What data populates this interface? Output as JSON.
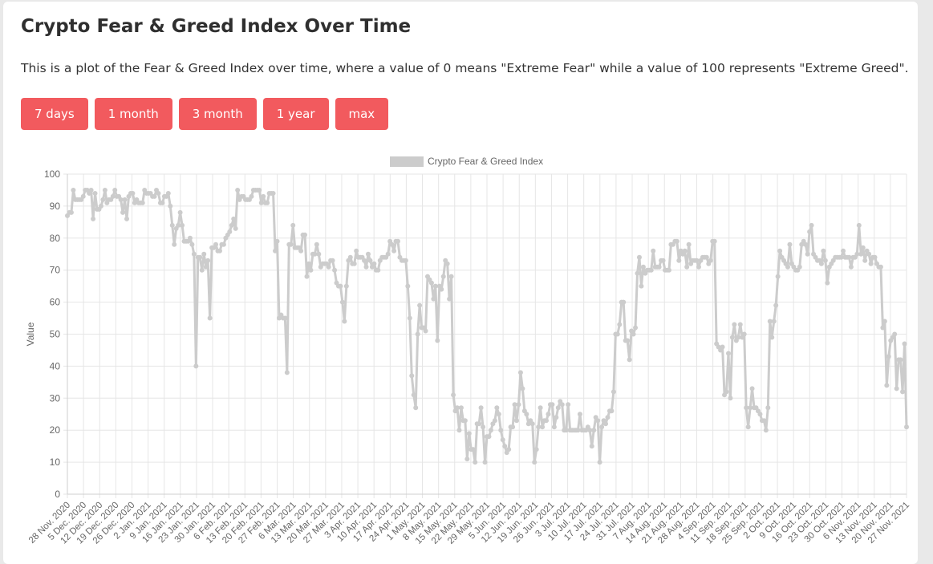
{
  "page": {
    "title": "Crypto Fear & Greed Index Over Time",
    "description": "This is a plot of the Fear & Greed Index over time, where a value of 0 means \"Extreme Fear\" while a value of 100 represents \"Extreme Greed\".",
    "buttons": [
      "7 days",
      "1 month",
      "3 month",
      "1 year",
      "max"
    ]
  },
  "colors": {
    "button_bg": "#f25a5e",
    "line": "#cccccc",
    "grid": "#e6e6e6"
  },
  "chart_data": {
    "type": "line",
    "title": "",
    "ylabel": "Value",
    "xlabel": "",
    "ylim": [
      0,
      100
    ],
    "yticks": [
      0,
      10,
      20,
      30,
      40,
      50,
      60,
      70,
      80,
      90,
      100
    ],
    "grid": true,
    "legend_position": "top-center",
    "series": [
      {
        "name": "Crypto Fear & Greed Index",
        "values": [
          87,
          88,
          88,
          95,
          92,
          92,
          92,
          92,
          93,
          95,
          95,
          94,
          95,
          86,
          94,
          89,
          89,
          90,
          92,
          95,
          91,
          92,
          92,
          93,
          95,
          93,
          93,
          92,
          88,
          92,
          86,
          93,
          94,
          94,
          91,
          92,
          91,
          91,
          91,
          95,
          94,
          94,
          94,
          93,
          93,
          95,
          94,
          91,
          91,
          93,
          93,
          94,
          90,
          84,
          78,
          83,
          84,
          88,
          84,
          79,
          79,
          79,
          80,
          78,
          75,
          40,
          74,
          74,
          70,
          75,
          71,
          73,
          55,
          77,
          77,
          78,
          76,
          76,
          78,
          78,
          80,
          81,
          82,
          84,
          86,
          83,
          95,
          92,
          93,
          93,
          92,
          92,
          92,
          93,
          95,
          95,
          95,
          95,
          91,
          93,
          91,
          91,
          94,
          94,
          94,
          76,
          79,
          55,
          56,
          55,
          55,
          38,
          78,
          78,
          84,
          77,
          77,
          77,
          76,
          81,
          81,
          68,
          72,
          70,
          75,
          75,
          78,
          75,
          71,
          72,
          72,
          72,
          71,
          73,
          73,
          70,
          66,
          65,
          65,
          60,
          54,
          65,
          73,
          74,
          72,
          72,
          76,
          74,
          74,
          74,
          73,
          71,
          75,
          73,
          71,
          72,
          70,
          70,
          73,
          74,
          74,
          74,
          75,
          79,
          78,
          76,
          79,
          79,
          74,
          73,
          73,
          73,
          65,
          55,
          37,
          31,
          27,
          50,
          59,
          52,
          52,
          51,
          68,
          67,
          66,
          61,
          65,
          48,
          65,
          64,
          68,
          73,
          72,
          61,
          68,
          31,
          26,
          27,
          20,
          27,
          23,
          23,
          11,
          19,
          14,
          14,
          10,
          22,
          22,
          27,
          21,
          10,
          18,
          18,
          20,
          22,
          23,
          27,
          25,
          20,
          17,
          15,
          13,
          14,
          21,
          21,
          28,
          23,
          28,
          38,
          33,
          26,
          25,
          22,
          23,
          22,
          10,
          14,
          21,
          27,
          21,
          23,
          23,
          25,
          28,
          28,
          21,
          24,
          27,
          29,
          28,
          20,
          20,
          28,
          20,
          20,
          20,
          20,
          20,
          25,
          20,
          20,
          20,
          21,
          20,
          15,
          20,
          24,
          23,
          10,
          21,
          23,
          22,
          24,
          26,
          26,
          32,
          50,
          50,
          53,
          60,
          60,
          48,
          48,
          42,
          51,
          50,
          52,
          69,
          74,
          65,
          71,
          69,
          70,
          70,
          70,
          76,
          71,
          71,
          71,
          73,
          73,
          70,
          70,
          70,
          78,
          78,
          79,
          79,
          73,
          76,
          75,
          76,
          71,
          78,
          72,
          73,
          73,
          73,
          71,
          73,
          74,
          74,
          74,
          72,
          73,
          79,
          79,
          47,
          46,
          45,
          46,
          31,
          32,
          44,
          30,
          49,
          53,
          48,
          49,
          53,
          49,
          50,
          27,
          21,
          27,
          33,
          27,
          27,
          26,
          25,
          23,
          23,
          20,
          27,
          54,
          49,
          54,
          59,
          68,
          76,
          74,
          73,
          72,
          71,
          78,
          72,
          71,
          70,
          70,
          71,
          78,
          79,
          78,
          75,
          82,
          84,
          75,
          74,
          73,
          73,
          72,
          76,
          73,
          66,
          71,
          72,
          73,
          74,
          74,
          74,
          74,
          76,
          74,
          74,
          74,
          71,
          74,
          74,
          75,
          84,
          75,
          77,
          73,
          76,
          75,
          72,
          74,
          74,
          72,
          71,
          71,
          52,
          54,
          34,
          43,
          48,
          49,
          50,
          33,
          42,
          42,
          32,
          47,
          21
        ]
      }
    ],
    "x_labels": [
      "28 Nov. 2020",
      "5 Dec. 2020",
      "12 Dec. 2020",
      "19 Dec. 2020",
      "26 Dec. 2020",
      "2 Jan. 2021",
      "9 Jan. 2021",
      "16 Jan. 2021",
      "23 Jan. 2021",
      "30 Jan. 2021",
      "6 Feb. 2021",
      "13 Feb. 2021",
      "20 Feb. 2021",
      "27 Feb. 2021",
      "6 Mar. 2021",
      "13 Mar. 2021",
      "20 Mar. 2021",
      "27 Mar. 2021",
      "3 Apr. 2021",
      "10 Apr. 2021",
      "17 Apr. 2021",
      "24 Apr. 2021",
      "1 May. 2021",
      "8 May. 2021",
      "15 May. 2021",
      "22 May. 2021",
      "29 May. 2021",
      "5 Jun. 2021",
      "12 Jun. 2021",
      "19 Jun. 2021",
      "26 Jun. 2021",
      "3 Jul. 2021",
      "10 Jul. 2021",
      "17 Jul. 2021",
      "24 Jul. 2021",
      "31 Jul. 2021",
      "7 Aug. 2021",
      "14 Aug. 2021",
      "21 Aug. 2021",
      "28 Aug. 2021",
      "4 Sep. 2021",
      "11 Sep. 2021",
      "18 Sep. 2021",
      "25 Sep. 2021",
      "2 Oct. 2021",
      "9 Oct. 2021",
      "16 Oct. 2021",
      "23 Oct. 2021",
      "30 Oct. 2021",
      "6 Nov. 2021",
      "13 Nov. 2021",
      "20 Nov. 2021",
      "27 Nov. 2021"
    ]
  }
}
